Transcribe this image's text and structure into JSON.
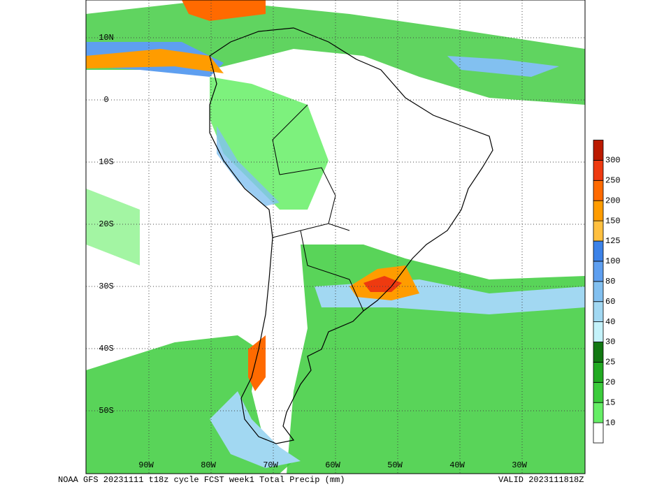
{
  "map": {
    "lat_labels": [
      "10N",
      "0",
      "10S",
      "20S",
      "30S",
      "40S",
      "50S"
    ],
    "lon_labels": [
      "90W",
      "80W",
      "70W",
      "60W",
      "50W",
      "40W",
      "30W"
    ]
  },
  "colorbar": {
    "labels": [
      "10",
      "15",
      "20",
      "25",
      "30",
      "40",
      "60",
      "80",
      "100",
      "125",
      "150",
      "200",
      "250",
      "300"
    ],
    "colors": [
      "#ffffff",
      "#66ee66",
      "#3ccc3c",
      "#22aa22",
      "#127812",
      "#c4f2fa",
      "#a2d8f2",
      "#82c0f0",
      "#5e9ff0",
      "#3c82e8",
      "#ffc040",
      "#ff9c00",
      "#ff6a00",
      "#ee3a10",
      "#bb1a00"
    ]
  },
  "caption": {
    "left": "NOAA GFS 20231111 t18z cycle FCST week1 Total Precip (mm)",
    "right": "VALID 2023111818Z"
  }
}
